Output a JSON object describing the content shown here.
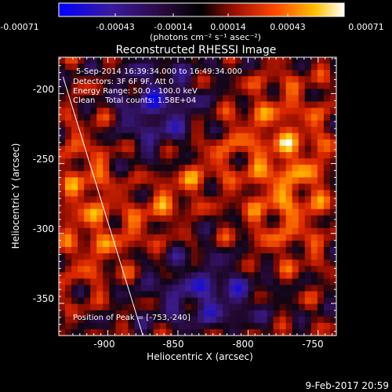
{
  "colorbar": {
    "ticks": [
      "-0.00071",
      "-0.00043",
      "-0.00014",
      "0.00014",
      "0.00043",
      "0.00071"
    ],
    "units": "(photons cm⁻² s⁻¹ asec⁻²)",
    "range": [
      -0.00071,
      0.00071
    ]
  },
  "chart_data": {
    "type": "heatmap",
    "title": "Reconstructed RHESSI Image",
    "xlabel": "Heliocentric X (arcsec)",
    "ylabel": "Heliocentric Y (arcsec)",
    "xlim": [
      -935,
      -737
    ],
    "ylim": [
      -373,
      -174
    ],
    "xticks": [
      -900,
      -850,
      -800,
      -750
    ],
    "yticks": [
      -200,
      -250,
      -300,
      -350
    ],
    "colormap": [
      "#0000ff",
      "#5a2a9a",
      "#1a0a20",
      "#aa1a00",
      "#ff4a00",
      "#ffb000",
      "#ffffff"
    ],
    "annotations": [
      "5-Sep-2014 16:39:34.000 to 16:49:34.000",
      "Detectors: 3F 6F 9F, Att 0",
      "Energy Range: 50.0 - 100.0 keV",
      "Clean    Total counts: 1.58E+04"
    ],
    "peak_label": "Position of Peak = [-753,-240]",
    "limb_line": [
      [
        -932,
        -188
      ],
      [
        -875,
        -373
      ]
    ],
    "grid": false
  },
  "timestamp": "9-Feb-2017 20:59"
}
